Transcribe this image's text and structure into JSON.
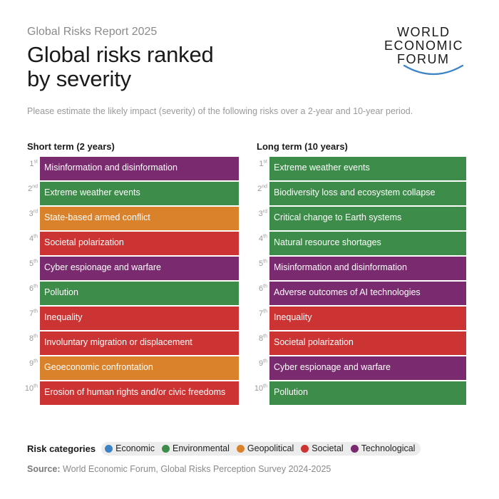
{
  "header": {
    "kicker": "Global Risks Report 2025",
    "title_line1": "Global risks ranked",
    "title_line2": "by severity",
    "subtitle": "Please estimate the likely impact (severity) of the following risks over a 2-year and 10-year period."
  },
  "logo": {
    "line1": "WORLD",
    "line2": "ECONOMIC",
    "line3": "FORUM",
    "arc_color": "#3b83c4"
  },
  "colors": {
    "Economic": "#3b83c4",
    "Environmental": "#3d8c4a",
    "Geopolitical": "#d9822b",
    "Societal": "#cc3333",
    "Technological": "#7a2a6e"
  },
  "short_term": {
    "heading": "Short term (2 years)",
    "rows": [
      {
        "rank": "1",
        "suffix": "st",
        "label": "Misinformation and disinformation",
        "category": "Technological"
      },
      {
        "rank": "2",
        "suffix": "nd",
        "label": "Extreme weather events",
        "category": "Environmental"
      },
      {
        "rank": "3",
        "suffix": "rd",
        "label": "State-based armed conflict",
        "category": "Geopolitical"
      },
      {
        "rank": "4",
        "suffix": "th",
        "label": "Societal polarization",
        "category": "Societal"
      },
      {
        "rank": "5",
        "suffix": "th",
        "label": "Cyber espionage and warfare",
        "category": "Technological"
      },
      {
        "rank": "6",
        "suffix": "th",
        "label": "Pollution",
        "category": "Environmental"
      },
      {
        "rank": "7",
        "suffix": "th",
        "label": "Inequality",
        "category": "Societal"
      },
      {
        "rank": "8",
        "suffix": "th",
        "label": "Involuntary migration or displacement",
        "category": "Societal"
      },
      {
        "rank": "9",
        "suffix": "th",
        "label": "Geoeconomic confrontation",
        "category": "Geopolitical"
      },
      {
        "rank": "10",
        "suffix": "th",
        "label": "Erosion of human rights and/or civic freedoms",
        "category": "Societal"
      }
    ]
  },
  "long_term": {
    "heading": "Long term (10 years)",
    "rows": [
      {
        "rank": "1",
        "suffix": "st",
        "label": "Extreme weather events",
        "category": "Environmental"
      },
      {
        "rank": "2",
        "suffix": "nd",
        "label": "Biodiversity loss and ecosystem collapse",
        "category": "Environmental"
      },
      {
        "rank": "3",
        "suffix": "rd",
        "label": "Critical change to Earth systems",
        "category": "Environmental"
      },
      {
        "rank": "4",
        "suffix": "th",
        "label": "Natural resource shortages",
        "category": "Environmental"
      },
      {
        "rank": "5",
        "suffix": "th",
        "label": "Misinformation and disinformation",
        "category": "Technological"
      },
      {
        "rank": "6",
        "suffix": "th",
        "label": "Adverse outcomes of AI technologies",
        "category": "Technological"
      },
      {
        "rank": "7",
        "suffix": "th",
        "label": "Inequality",
        "category": "Societal"
      },
      {
        "rank": "8",
        "suffix": "th",
        "label": "Societal polarization",
        "category": "Societal"
      },
      {
        "rank": "9",
        "suffix": "th",
        "label": "Cyber espionage and warfare",
        "category": "Technological"
      },
      {
        "rank": "10",
        "suffix": "th",
        "label": "Pollution",
        "category": "Environmental"
      }
    ]
  },
  "legend": {
    "label": "Risk categories",
    "items": [
      "Economic",
      "Environmental",
      "Geopolitical",
      "Societal",
      "Technological"
    ]
  },
  "source": {
    "label": "Source:",
    "text": " World Economic Forum, Global Risks Perception Survey 2024-2025"
  }
}
